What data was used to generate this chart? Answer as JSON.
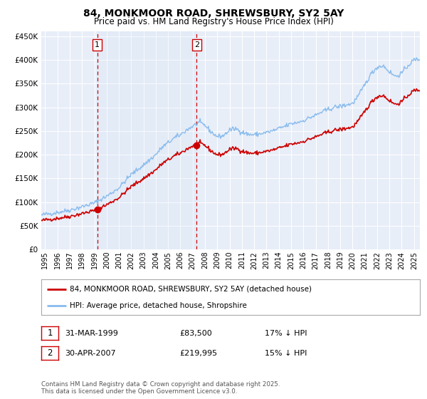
{
  "title": "84, MONKMOOR ROAD, SHREWSBURY, SY2 5AY",
  "subtitle": "Price paid vs. HM Land Registry's House Price Index (HPI)",
  "title_fontsize": 10,
  "subtitle_fontsize": 8.5,
  "background_color": "#ffffff",
  "plot_bg_color": "#e8eef8",
  "grid_color": "#ffffff",
  "hpi_color": "#88bbee",
  "price_color": "#cc0000",
  "marker_color": "#cc0000",
  "vline_color": "#cc0000",
  "ylabel_values": [
    0,
    50000,
    100000,
    150000,
    200000,
    250000,
    300000,
    350000,
    400000,
    450000
  ],
  "ylabel_labels": [
    "£0",
    "£50K",
    "£100K",
    "£150K",
    "£200K",
    "£250K",
    "£300K",
    "£350K",
    "£400K",
    "£450K"
  ],
  "ylim": [
    0,
    460000
  ],
  "xlim_start": 1994.7,
  "xlim_end": 2025.5,
  "purchase1_year": 1999.24,
  "purchase1_price": 83500,
  "purchase1_label": "1",
  "purchase1_date": "31-MAR-1999",
  "purchase1_hpi_pct": "17% ↓ HPI",
  "purchase2_year": 2007.33,
  "purchase2_price": 219995,
  "purchase2_label": "2",
  "purchase2_date": "30-APR-2007",
  "purchase2_hpi_pct": "15% ↓ HPI",
  "legend_line1": "84, MONKMOOR ROAD, SHREWSBURY, SY2 5AY (detached house)",
  "legend_line2": "HPI: Average price, detached house, Shropshire",
  "footer": "Contains HM Land Registry data © Crown copyright and database right 2025.\nThis data is licensed under the Open Government Licence v3.0.",
  "xtick_years": [
    1995,
    1996,
    1997,
    1998,
    1999,
    2000,
    2001,
    2002,
    2003,
    2004,
    2005,
    2006,
    2007,
    2008,
    2009,
    2010,
    2011,
    2012,
    2013,
    2014,
    2015,
    2016,
    2017,
    2018,
    2019,
    2020,
    2021,
    2022,
    2023,
    2024,
    2025
  ]
}
